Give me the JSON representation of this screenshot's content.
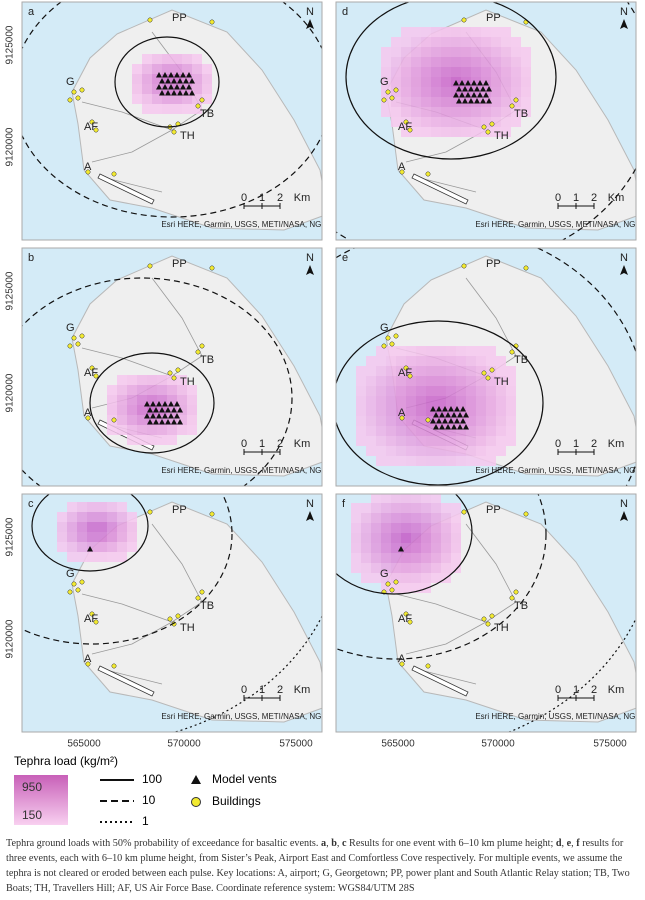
{
  "panels": [
    {
      "letter": "a"
    },
    {
      "letter": "b"
    },
    {
      "letter": "c"
    },
    {
      "letter": "d"
    },
    {
      "letter": "e"
    },
    {
      "letter": "f"
    }
  ],
  "map_labels": {
    "PP": "PP",
    "G": "G",
    "AF": "AF",
    "TB": "TB",
    "TH": "TH",
    "A": "A"
  },
  "north": "N",
  "scale": [
    "0",
    "1",
    "2",
    "Km"
  ],
  "attribution": "Esri HERE, Garmin, USGS, METI/NASA, NGA",
  "y_ticks": [
    "9125000",
    "9120000"
  ],
  "x_ticks": [
    "565000",
    "570000",
    "575000"
  ],
  "legend": {
    "title": "Tephra load (kg/m²)",
    "high": "950",
    "low": "150",
    "lines": [
      "100",
      "10",
      "1"
    ],
    "vents": "Model vents",
    "buildings": "Buildings"
  },
  "caption": [
    "Tephra ground loads with 50% probability of exceedance for basaltic events. ",
    "a",
    ", ",
    "b",
    ", ",
    "c",
    " Results for one event with 6–10 km plume height; ",
    "d",
    ", ",
    "e",
    ", ",
    "f",
    " results for three events, each with 6–10 km plume height, from Sister’s Peak, Airport East and Comfortless Cove respectively. For multiple events, we assume the tephra is not cleared or eroded between each pulse. Key locations: A, airport; G, Georgetown; PP, power plant and South Atlantic Relay station; TB, Two Boats; TH, Travellers Hill; AF, US Air Force Base. Coordinate reference system: WGS84/UTM 28S"
  ]
}
